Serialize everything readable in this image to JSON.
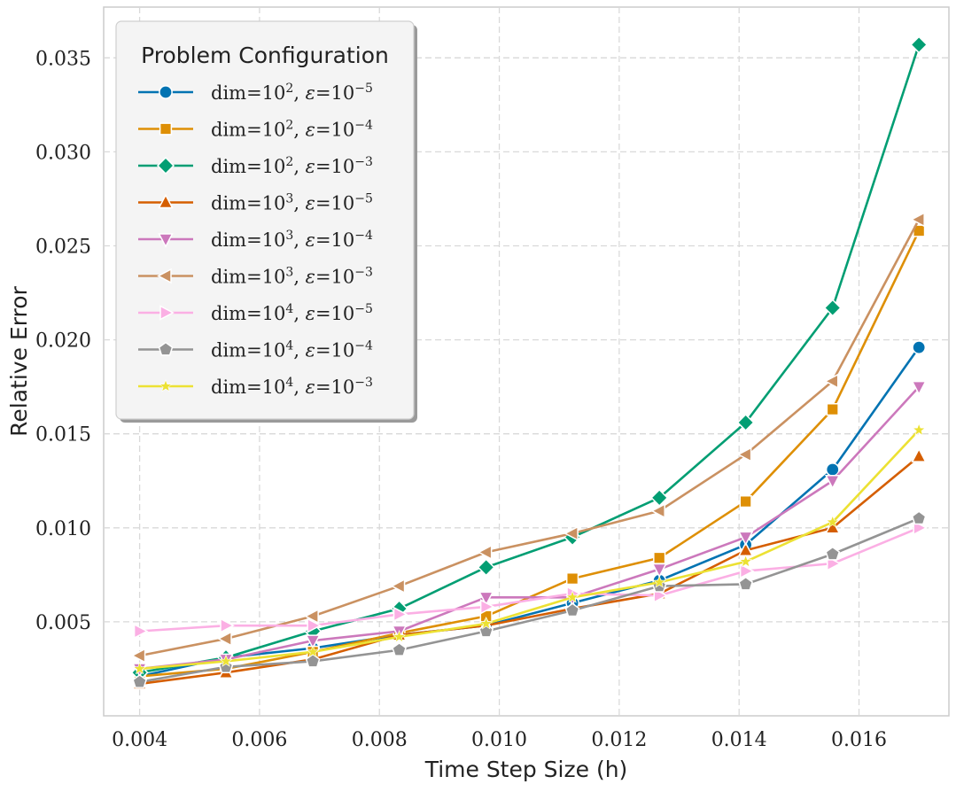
{
  "chart_data": {
    "type": "line",
    "xlabel": "Time Step Size (h)",
    "ylabel": "Relative Error",
    "xlim": [
      0.0034,
      0.0175
    ],
    "ylim": [
      0.0,
      0.0377
    ],
    "xticks": [
      0.004,
      0.006,
      0.008,
      0.01,
      0.012,
      0.014,
      0.016
    ],
    "xtick_labels": [
      "0.004",
      "0.006",
      "0.008",
      "0.010",
      "0.012",
      "0.014",
      "0.016"
    ],
    "yticks": [
      0.005,
      0.01,
      0.015,
      0.02,
      0.025,
      0.03,
      0.035
    ],
    "ytick_labels": [
      "0.005",
      "0.010",
      "0.015",
      "0.020",
      "0.025",
      "0.030",
      "0.035"
    ],
    "grid": true,
    "legend": {
      "title": "Problem Configuration",
      "position": "top-left"
    },
    "x": [
      0.004,
      0.00544,
      0.00689,
      0.00833,
      0.00978,
      0.01122,
      0.01267,
      0.01411,
      0.01556,
      0.017
    ],
    "series": [
      {
        "name": "dim=10^2, ε=10^-5",
        "dim_base": "dim=10",
        "dim_exp": "2",
        "eps_exp": "−5",
        "color": "#0173b2",
        "marker": "circle",
        "values": [
          0.0021,
          0.0031,
          0.0036,
          0.0043,
          0.0048,
          0.006,
          0.0072,
          0.0091,
          0.0131,
          0.0196
        ]
      },
      {
        "name": "dim=10^2, ε=10^-4",
        "dim_base": "dim=10",
        "dim_exp": "2",
        "eps_exp": "−4",
        "color": "#de8f05",
        "marker": "square",
        "values": [
          0.0021,
          0.0025,
          0.0034,
          0.0044,
          0.0053,
          0.0073,
          0.0084,
          0.0114,
          0.0163,
          0.0258
        ]
      },
      {
        "name": "dim=10^2, ε=10^-3",
        "dim_base": "dim=10",
        "dim_exp": "2",
        "eps_exp": "−3",
        "color": "#029e73",
        "marker": "diamond",
        "values": [
          0.0023,
          0.0031,
          0.0045,
          0.0057,
          0.0079,
          0.0095,
          0.0116,
          0.0156,
          0.0217,
          0.0357
        ]
      },
      {
        "name": "dim=10^3, ε=10^-5",
        "dim_base": "dim=10",
        "dim_exp": "3",
        "eps_exp": "−5",
        "color": "#d55e00",
        "marker": "triangle-up",
        "values": [
          0.0017,
          0.0023,
          0.003,
          0.0043,
          0.0048,
          0.0057,
          0.0065,
          0.0088,
          0.01,
          0.0138
        ]
      },
      {
        "name": "dim=10^3, ε=10^-4",
        "dim_base": "dim=10",
        "dim_exp": "3",
        "eps_exp": "−4",
        "color": "#cc78bc",
        "marker": "triangle-down",
        "values": [
          0.0025,
          0.003,
          0.004,
          0.0045,
          0.0063,
          0.0063,
          0.0078,
          0.0095,
          0.0125,
          0.0175
        ]
      },
      {
        "name": "dim=10^3, ε=10^-3",
        "dim_base": "dim=10",
        "dim_exp": "3",
        "eps_exp": "−3",
        "color": "#ca9161",
        "marker": "triangle-left",
        "values": [
          0.0032,
          0.0041,
          0.0053,
          0.0069,
          0.0087,
          0.0097,
          0.0109,
          0.0139,
          0.0178,
          0.0264
        ]
      },
      {
        "name": "dim=10^4, ε=10^-5",
        "dim_base": "dim=10",
        "dim_exp": "4",
        "eps_exp": "−5",
        "color": "#fbafe4",
        "marker": "triangle-right",
        "values": [
          0.0045,
          0.0048,
          0.0048,
          0.0054,
          0.0058,
          0.0065,
          0.0064,
          0.0077,
          0.0081,
          0.01
        ]
      },
      {
        "name": "dim=10^4, ε=10^-4",
        "dim_base": "dim=10",
        "dim_exp": "4",
        "eps_exp": "−4",
        "color": "#949494",
        "marker": "pentagon",
        "values": [
          0.0018,
          0.0026,
          0.0029,
          0.0035,
          0.0045,
          0.0056,
          0.0069,
          0.007,
          0.0086,
          0.0105
        ]
      },
      {
        "name": "dim=10^4, ε=10^-3",
        "dim_base": "dim=10",
        "dim_exp": "4",
        "eps_exp": "−3",
        "color": "#ece133",
        "marker": "star",
        "values": [
          0.0025,
          0.0029,
          0.0034,
          0.0042,
          0.0049,
          0.0063,
          0.0071,
          0.0082,
          0.0103,
          0.0152
        ]
      }
    ]
  }
}
